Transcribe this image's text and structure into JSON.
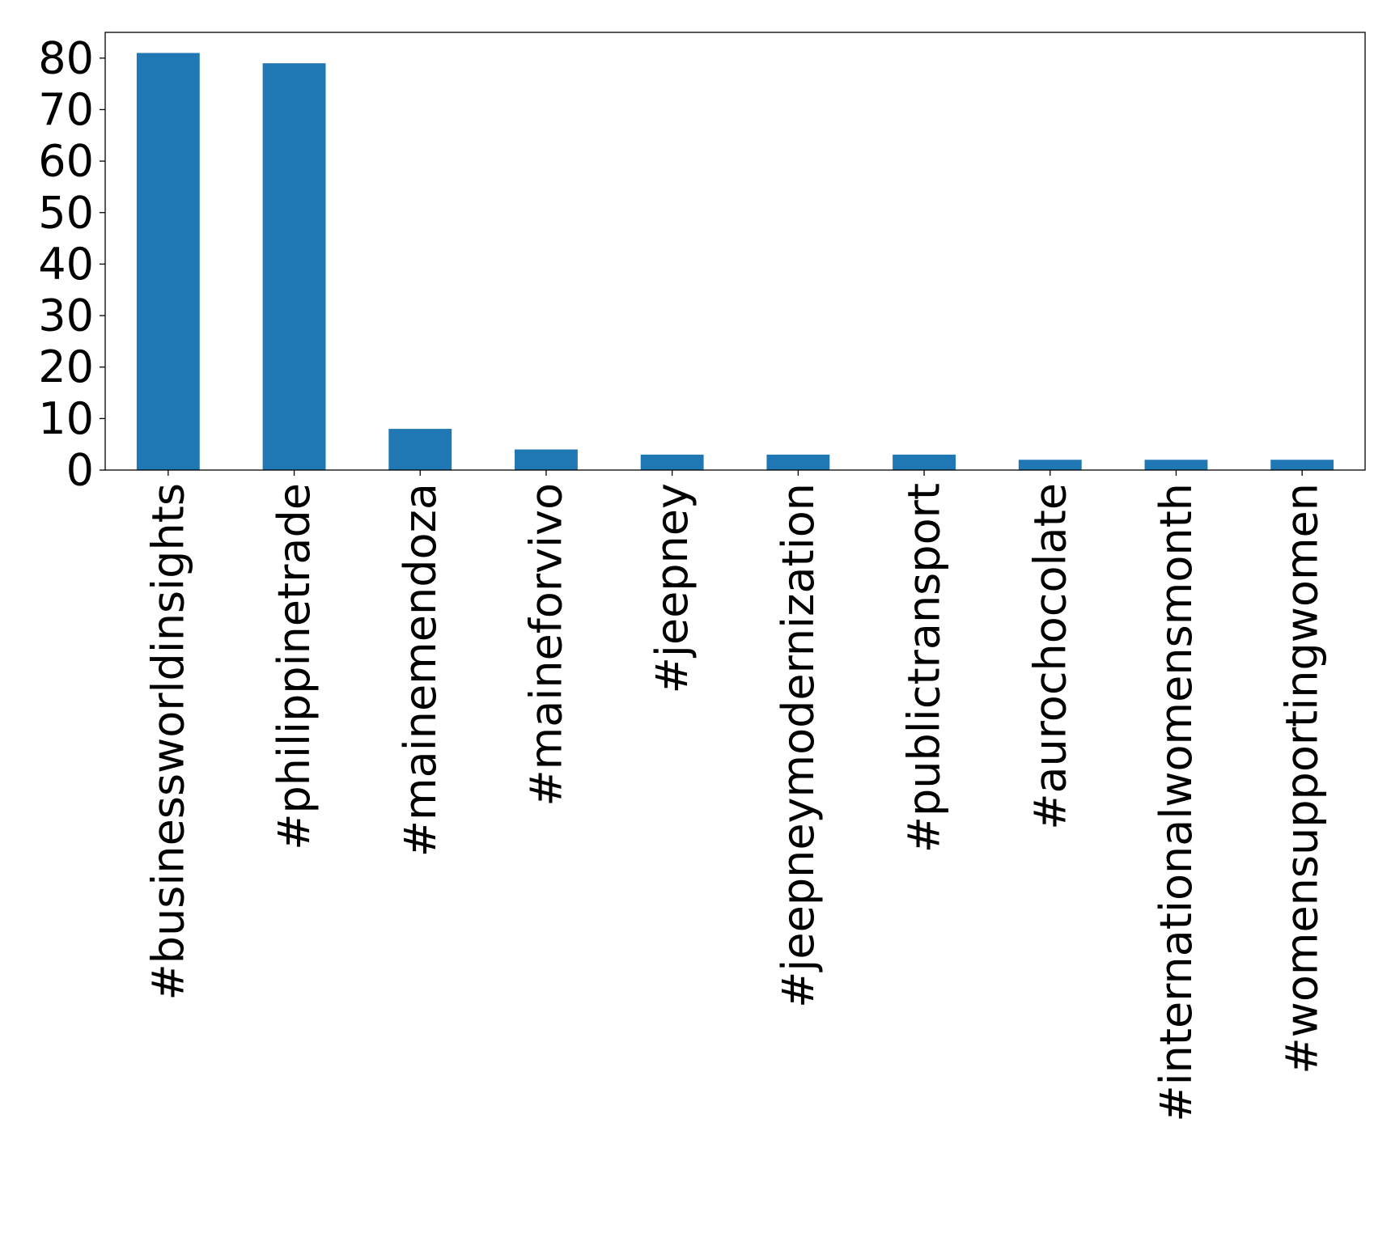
{
  "chart_data": {
    "type": "bar",
    "title": "",
    "xlabel": "",
    "ylabel": "",
    "categories": [
      "#businessworldinsights",
      "#philippinetrade",
      "#mainemendoza",
      "#maineforvivo",
      "#jeepney",
      "#jeepneymodernization",
      "#publictransport",
      "#aurochocolate",
      "#internationalwomensmonth",
      "#womensupportingwomen"
    ],
    "values": [
      81,
      79,
      8,
      4,
      3,
      3,
      3,
      2,
      2,
      2
    ],
    "ylim": [
      0,
      85
    ],
    "yticks": [
      0,
      10,
      20,
      30,
      40,
      50,
      60,
      70,
      80
    ],
    "grid": false,
    "legend": "none",
    "bar_color": "#1f77b4",
    "axis_color": "#000000"
  }
}
